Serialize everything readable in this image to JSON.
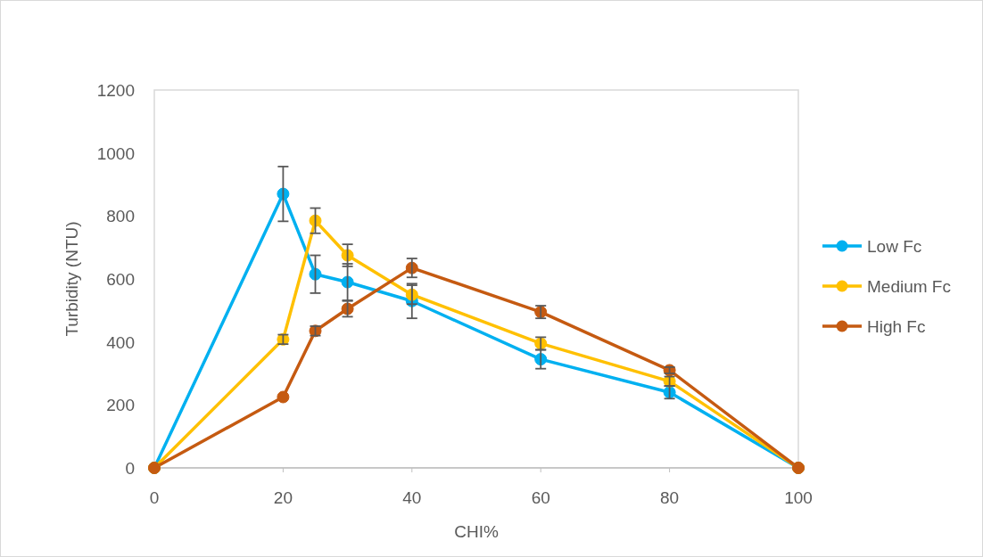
{
  "chart_data": {
    "type": "line",
    "xlabel": "CHI%",
    "ylabel": "Turbidity (NTU)",
    "x": [
      0,
      20,
      25,
      30,
      40,
      60,
      80,
      100
    ],
    "xlim": [
      0,
      100
    ],
    "xticks": [
      0,
      20,
      40,
      60,
      80,
      100
    ],
    "ylim": [
      0,
      1200
    ],
    "yticks": [
      0,
      200,
      400,
      600,
      800,
      1000,
      1200
    ],
    "grid": false,
    "legend": "right",
    "marker": "circle",
    "line_style": "solid",
    "series": [
      {
        "name": "Low Fc",
        "color": "#00b0f0",
        "values": [
          0,
          870,
          615,
          590,
          530,
          345,
          240,
          0
        ],
        "errors": [
          null,
          87,
          60,
          58,
          55,
          30,
          20,
          null
        ]
      },
      {
        "name": "Medium Fc",
        "color": "#ffc000",
        "values": [
          0,
          408,
          785,
          675,
          550,
          395,
          275,
          0
        ],
        "errors": [
          null,
          15,
          40,
          35,
          30,
          20,
          15,
          null
        ]
      },
      {
        "name": "High Fc",
        "color": "#c55a11",
        "values": [
          0,
          225,
          435,
          505,
          635,
          495,
          310,
          0
        ],
        "errors": [
          null,
          null,
          15,
          25,
          30,
          20,
          10,
          null
        ]
      }
    ]
  }
}
